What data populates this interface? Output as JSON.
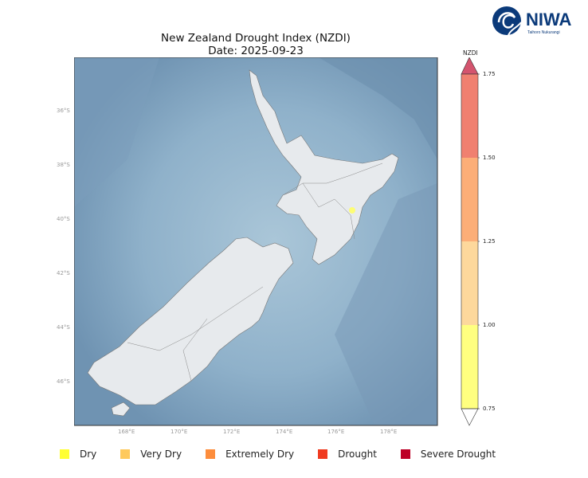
{
  "title": "New Zealand Drought Index (NZDI)",
  "subtitle": "Date: 2025-09-23",
  "logo": {
    "name": "NIWA",
    "tagline": "Taihoro Nukurangi"
  },
  "map": {
    "lat_ticks": [
      "36°S",
      "38°S",
      "40°S",
      "42°S",
      "44°S",
      "46°S"
    ],
    "lon_ticks": [
      "168°E",
      "170°E",
      "172°E",
      "174°E",
      "176°E",
      "178°E"
    ],
    "highlighted_region": {
      "category": "Dry",
      "color": "#ffff66"
    }
  },
  "colorbar": {
    "label": "NZDI",
    "ticks": [
      "1.75",
      "1.50",
      "1.25",
      "1.00",
      "0.75"
    ],
    "segments": [
      {
        "range": [
          1.5,
          1.75
        ],
        "color": "#f08070"
      },
      {
        "range": [
          1.25,
          1.5
        ],
        "color": "#fcae78"
      },
      {
        "range": [
          1.0,
          1.25
        ],
        "color": "#fdd89c"
      },
      {
        "range": [
          0.75,
          1.0
        ],
        "color": "#ffff80"
      }
    ],
    "extend_max_color": "#d4546e",
    "extend_min_color": "#ffffff"
  },
  "legend": [
    {
      "label": "Dry",
      "color": "#ffff33"
    },
    {
      "label": "Very Dry",
      "color": "#fec95c"
    },
    {
      "label": "Extremely Dry",
      "color": "#fd8d3c"
    },
    {
      "label": "Drought",
      "color": "#f03b20"
    },
    {
      "label": "Severe Drought",
      "color": "#bd0026"
    }
  ]
}
